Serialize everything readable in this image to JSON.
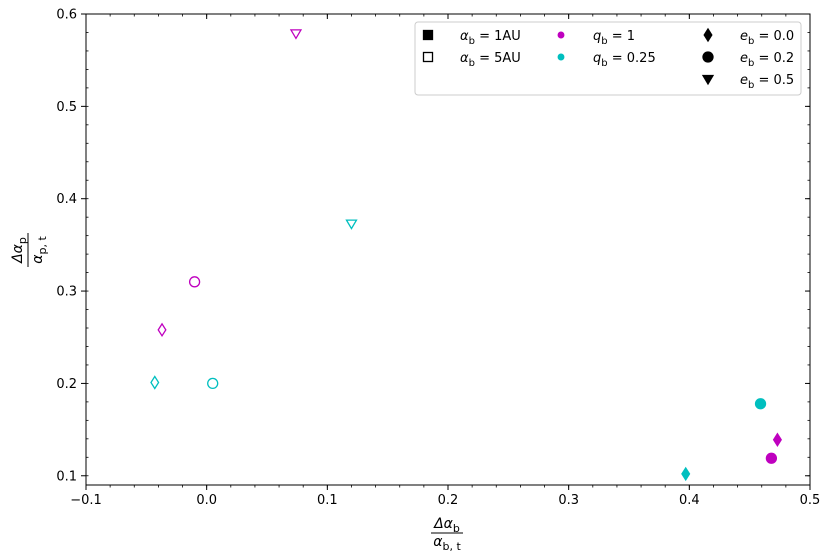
{
  "chart_data": {
    "type": "scatter",
    "title": "",
    "xlabel": {
      "numerator": "Δα",
      "numerator_sub": "b",
      "denominator": "α",
      "denominator_sub": "b, t"
    },
    "ylabel": {
      "numerator": "Δα",
      "numerator_sub": "p",
      "denominator": "α",
      "denominator_sub": "p, t"
    },
    "xlim": [
      -0.1,
      0.5
    ],
    "ylim": [
      0.09,
      0.6
    ],
    "xticks": [
      -0.1,
      0.0,
      0.1,
      0.2,
      0.3,
      0.4,
      0.5
    ],
    "xtick_labels": [
      "−0.1",
      "0.0",
      "0.1",
      "0.2",
      "0.3",
      "0.4",
      "0.5"
    ],
    "yticks": [
      0.1,
      0.2,
      0.3,
      0.4,
      0.5,
      0.6
    ],
    "ytick_labels": [
      "0.1",
      "0.2",
      "0.3",
      "0.4",
      "0.5",
      "0.6"
    ],
    "grid": false,
    "legend_position": "top-right",
    "colors": {
      "q1": "#bf00bf",
      "q025": "#00bfbf"
    },
    "legend": [
      [
        {
          "marker": "square",
          "fill": "filled",
          "color": "#000000",
          "symbol": "α",
          "sub": "b",
          "value": " = 1AU"
        },
        {
          "marker": "square",
          "fill": "open",
          "color": "#000000",
          "symbol": "α",
          "sub": "b",
          "value": " = 5AU"
        }
      ],
      [
        {
          "marker": "dot",
          "fill": "filled",
          "color": "#bf00bf",
          "symbol": "q",
          "sub": "b",
          "value": " = 1"
        },
        {
          "marker": "dot",
          "fill": "filled",
          "color": "#00bfbf",
          "symbol": "q",
          "sub": "b",
          "value": " = 0.25"
        }
      ],
      [
        {
          "marker": "diamond",
          "fill": "filled",
          "color": "#000000",
          "symbol": "e",
          "sub": "b",
          "value": " = 0.0"
        },
        {
          "marker": "circle",
          "fill": "filled",
          "color": "#000000",
          "symbol": "e",
          "sub": "b",
          "value": " = 0.2"
        },
        {
          "marker": "triangle",
          "fill": "filled",
          "color": "#000000",
          "symbol": "e",
          "sub": "b",
          "value": " = 0.5"
        }
      ]
    ],
    "points": [
      {
        "x": 0.074,
        "y": 0.579,
        "marker": "triangle",
        "fill": "open",
        "color": "#bf00bf"
      },
      {
        "x": 0.12,
        "y": 0.373,
        "marker": "triangle",
        "fill": "open",
        "color": "#00bfbf"
      },
      {
        "x": -0.01,
        "y": 0.31,
        "marker": "circle",
        "fill": "open",
        "color": "#bf00bf"
      },
      {
        "x": -0.037,
        "y": 0.258,
        "marker": "diamond",
        "fill": "open",
        "color": "#bf00bf"
      },
      {
        "x": -0.043,
        "y": 0.201,
        "marker": "diamond",
        "fill": "open",
        "color": "#00bfbf"
      },
      {
        "x": 0.005,
        "y": 0.2,
        "marker": "circle",
        "fill": "open",
        "color": "#00bfbf"
      },
      {
        "x": 0.459,
        "y": 0.178,
        "marker": "circle",
        "fill": "filled",
        "color": "#00bfbf"
      },
      {
        "x": 0.473,
        "y": 0.139,
        "marker": "diamond",
        "fill": "filled",
        "color": "#bf00bf"
      },
      {
        "x": 0.468,
        "y": 0.119,
        "marker": "circle",
        "fill": "filled",
        "color": "#bf00bf"
      },
      {
        "x": 0.397,
        "y": 0.102,
        "marker": "diamond",
        "fill": "filled",
        "color": "#00bfbf"
      }
    ]
  }
}
